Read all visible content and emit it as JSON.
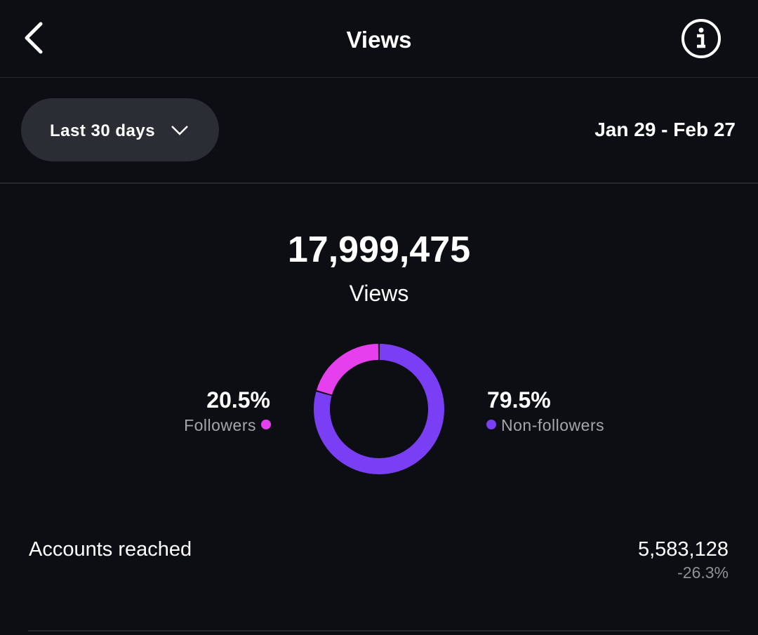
{
  "header": {
    "title": "Views"
  },
  "filter": {
    "period": "Last 30 days",
    "date_range": "Jan 29 - Feb 27"
  },
  "summary": {
    "total": "17,999,475",
    "label": "Views"
  },
  "chart_data": {
    "type": "donut",
    "categories": [
      "Followers",
      "Non-followers"
    ],
    "values": [
      20.5,
      79.5
    ],
    "value_labels": [
      "20.5%",
      "79.5%"
    ],
    "colors": [
      "#e640ee",
      "#7a3ff4"
    ]
  },
  "stats": {
    "label": "Accounts reached",
    "value": "5,583,128",
    "change": "-26.3%"
  }
}
